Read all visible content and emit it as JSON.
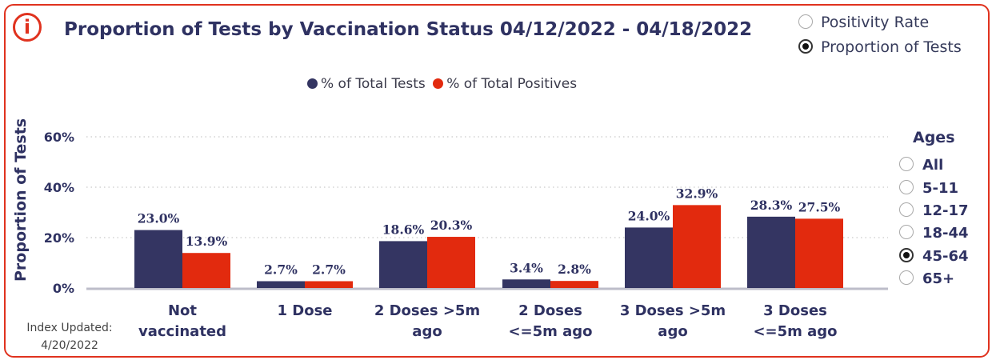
{
  "header": {
    "title": "Proportion of Tests by Vaccination Status 04/12/2022 - 04/18/2022",
    "info_icon": "info-circle-icon"
  },
  "view_toggle": {
    "options": [
      {
        "label": "Positivity Rate",
        "selected": false
      },
      {
        "label": "Proportion of Tests",
        "selected": true
      }
    ]
  },
  "ages": {
    "title": "Ages",
    "options": [
      {
        "label": "All",
        "selected": false
      },
      {
        "label": "5-11",
        "selected": false
      },
      {
        "label": "12-17",
        "selected": false
      },
      {
        "label": "18-44",
        "selected": false
      },
      {
        "label": "45-64",
        "selected": true
      },
      {
        "label": "65+",
        "selected": false
      }
    ]
  },
  "footnote": {
    "line1": "Index Updated:",
    "line2": "4/20/2022"
  },
  "colors": {
    "accent": "#e0321e",
    "navy": "#343562",
    "red": "#e22a0e",
    "title": "#2f3262"
  },
  "chart_data": {
    "type": "bar",
    "ylabel": "Proportion of Tests",
    "ylim": [
      0,
      60
    ],
    "yticks": [
      "0%",
      "20%",
      "40%",
      "60%"
    ],
    "grid": true,
    "legend_position": "top",
    "categories": [
      [
        "Not",
        "vaccinated"
      ],
      [
        "1 Dose"
      ],
      [
        "2 Doses >5m",
        "ago"
      ],
      [
        "2 Doses",
        "<=5m ago"
      ],
      [
        "3 Doses >5m",
        "ago"
      ],
      [
        "3 Doses",
        "<=5m ago"
      ]
    ],
    "series": [
      {
        "name": "% of Total Tests",
        "color": "#343562",
        "values": [
          23.0,
          2.7,
          18.6,
          3.4,
          24.0,
          28.3
        ],
        "labels": [
          "23.0%",
          "2.7%",
          "18.6%",
          "3.4%",
          "24.0%",
          "28.3%"
        ]
      },
      {
        "name": "% of Total Positives",
        "color": "#e22a0e",
        "values": [
          13.9,
          2.7,
          20.3,
          2.8,
          32.9,
          27.5
        ],
        "labels": [
          "13.9%",
          "2.7%",
          "20.3%",
          "2.8%",
          "32.9%",
          "27.5%"
        ]
      }
    ]
  }
}
